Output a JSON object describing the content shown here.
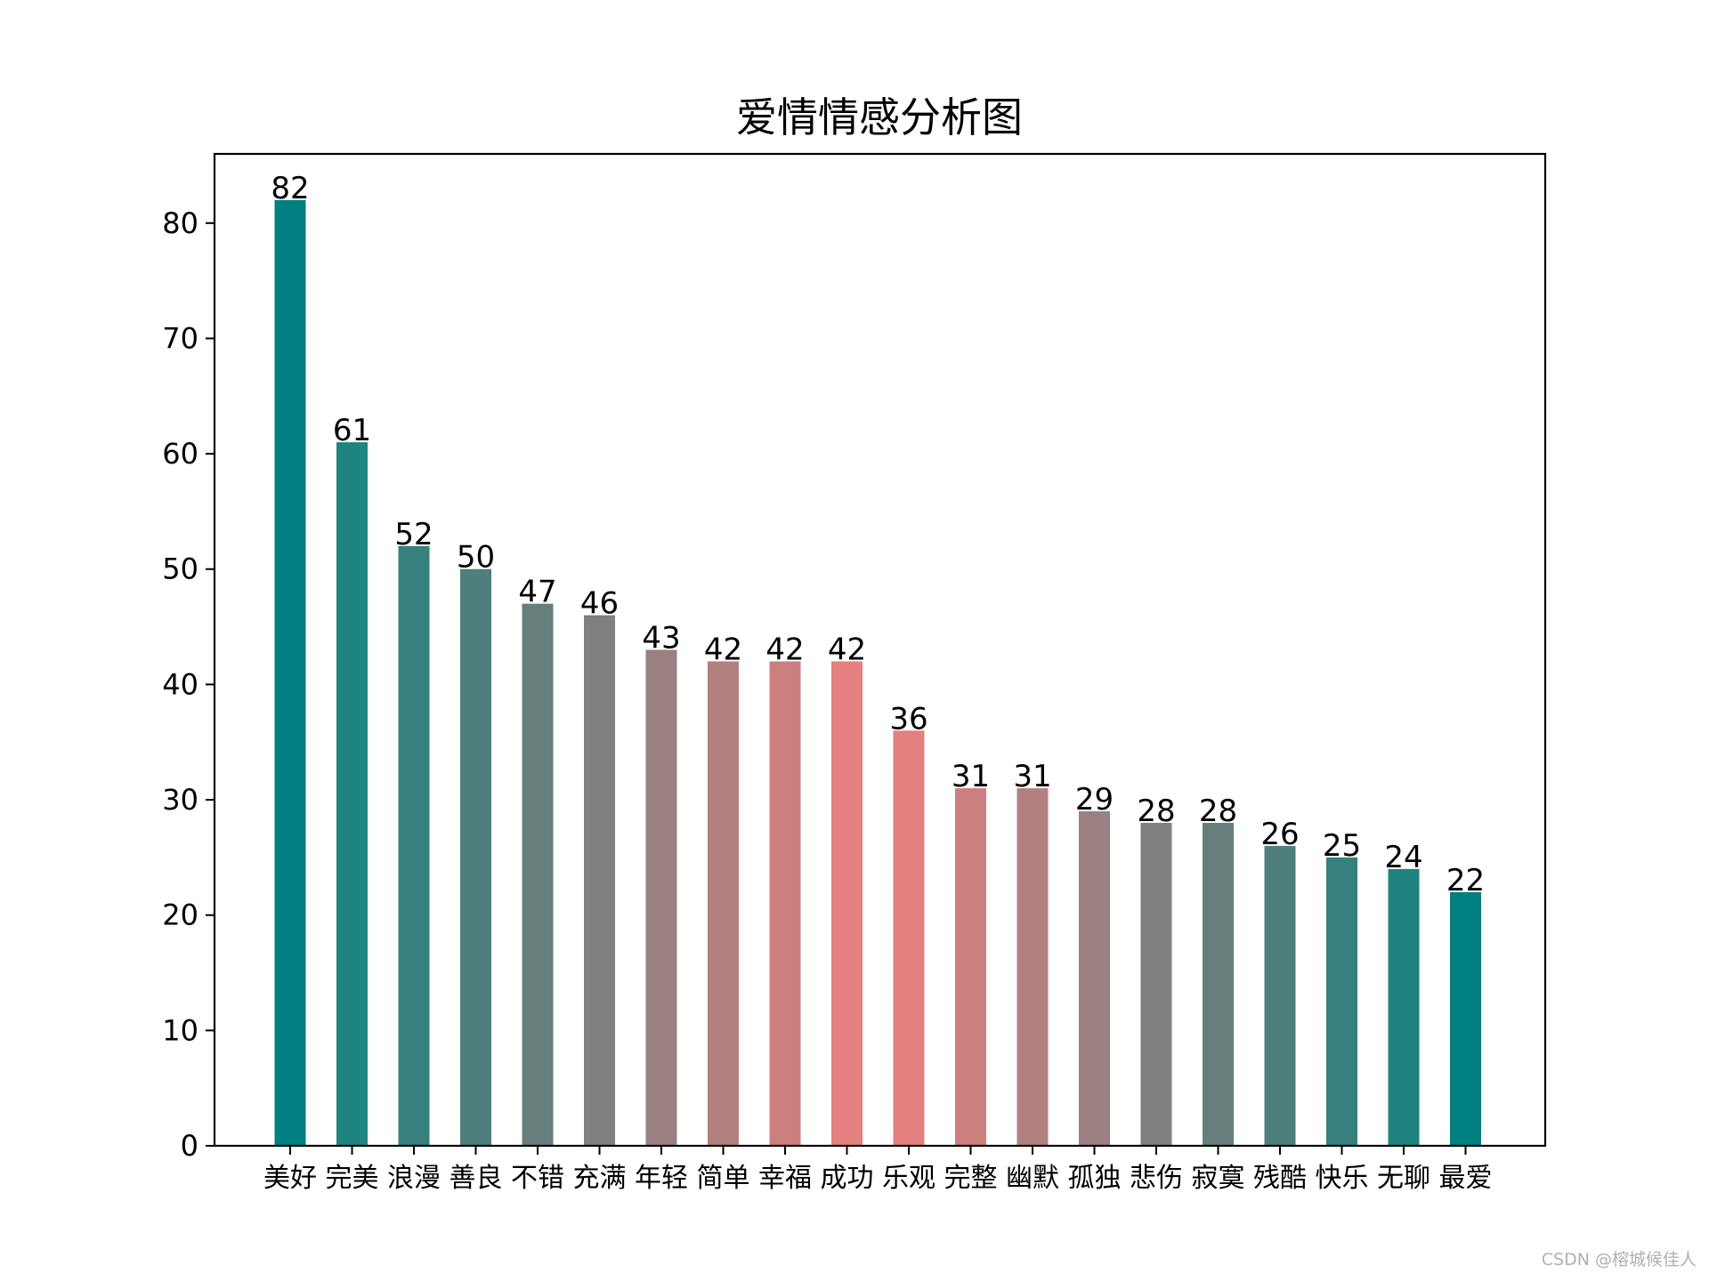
{
  "chart_data": {
    "type": "bar",
    "title": "爱情情感分析图",
    "xlabel": "",
    "ylabel": "",
    "categories": [
      "美好",
      "完美",
      "浪漫",
      "善良",
      "不错",
      "充满",
      "年轻",
      "简单",
      "幸福",
      "成功",
      "乐观",
      "完整",
      "幽默",
      "孤独",
      "悲伤",
      "寂寞",
      "残酷",
      "快乐",
      "无聊",
      "最爱"
    ],
    "values": [
      82,
      61,
      52,
      50,
      47,
      46,
      43,
      42,
      42,
      42,
      36,
      31,
      31,
      29,
      28,
      28,
      26,
      25,
      24,
      22
    ],
    "colors": [
      "#008080",
      "#1f847f",
      "#36807d",
      "#4e7f7c",
      "#667f7d",
      "#808080",
      "#9a8080",
      "#b38080",
      "#cc7f7f",
      "#e58080",
      "#e58080",
      "#cc7f7f",
      "#b38080",
      "#9a8080",
      "#808080",
      "#667f7d",
      "#4e7f7c",
      "#36807d",
      "#1f847f",
      "#008080"
    ],
    "yticks": [
      0,
      10,
      20,
      30,
      40,
      50,
      60,
      70,
      80
    ],
    "ylim": [
      0,
      86
    ],
    "grid": false,
    "show_value_labels": true
  },
  "watermark": "CSDN @榕城候佳人"
}
